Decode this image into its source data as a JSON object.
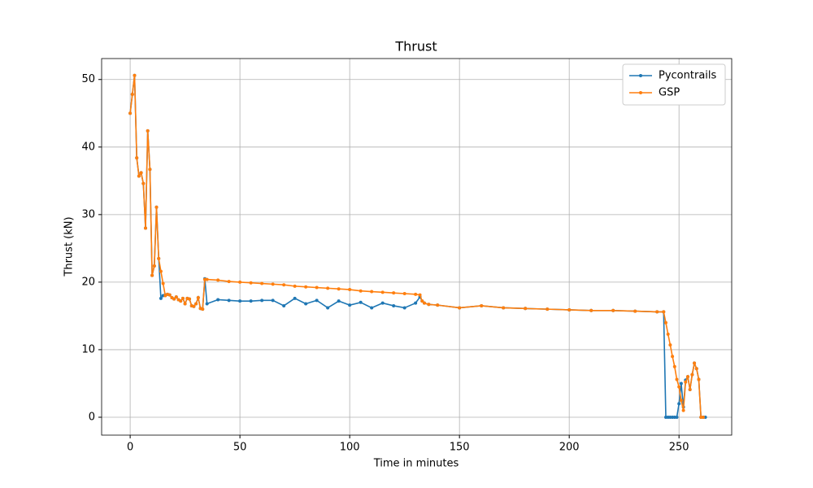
{
  "chart_data": {
    "type": "line",
    "title": "Thrust",
    "x_label": "Time in minutes",
    "y_label": "Thrust (kN)",
    "x": [
      0,
      1,
      2,
      3,
      4,
      5,
      6,
      7,
      8,
      9,
      10,
      11,
      12,
      13,
      14,
      15,
      16,
      17,
      18,
      19,
      20,
      21,
      22,
      23,
      24,
      25,
      26,
      27,
      28,
      29,
      30,
      31,
      32,
      33,
      34,
      35,
      40,
      45,
      50,
      55,
      60,
      65,
      70,
      75,
      80,
      85,
      90,
      95,
      100,
      105,
      110,
      115,
      120,
      125,
      130,
      132,
      133,
      134,
      136,
      140,
      150,
      160,
      170,
      180,
      190,
      200,
      210,
      220,
      230,
      240,
      243,
      244,
      245,
      246,
      247,
      248,
      249,
      250,
      251,
      252,
      253,
      254,
      255,
      256,
      257,
      258,
      259,
      260,
      261,
      262
    ],
    "series": [
      {
        "name": "Pycontrails",
        "color": "#1f77b4",
        "values": [
          45,
          47.8,
          50.6,
          38.4,
          35.7,
          36.2,
          34.6,
          28,
          42.4,
          36.7,
          21,
          22.4,
          31.1,
          23.5,
          17.6,
          18,
          18.1,
          18.2,
          18.1,
          17.7,
          17.5,
          17.8,
          17.4,
          17.2,
          17.6,
          16.8,
          17.6,
          17.5,
          16.5,
          16.4,
          16.8,
          17.7,
          16.1,
          16,
          20.5,
          16.8,
          17.4,
          17.3,
          17.2,
          17.2,
          17.3,
          17.3,
          16.5,
          17.6,
          16.8,
          17.3,
          16.2,
          17.2,
          16.6,
          17,
          16.2,
          16.9,
          16.5,
          16.2,
          16.9,
          17.8,
          17.2,
          16.9,
          16.7,
          16.6,
          16.2,
          16.5,
          16.2,
          16.1,
          16,
          15.9,
          15.8,
          15.8,
          15.7,
          15.6,
          15.6,
          0,
          0,
          0,
          0,
          0,
          0,
          2,
          5,
          1.5,
          5.5,
          6,
          4.1,
          6.3,
          8,
          7.2,
          5.6,
          0,
          0,
          0
        ]
      },
      {
        "name": "GSP",
        "color": "#ff7f0e",
        "values": [
          45,
          47.8,
          50.6,
          38.4,
          35.7,
          36.2,
          34.6,
          28,
          42.4,
          36.7,
          21,
          22.4,
          31.1,
          23.5,
          21.6,
          19.8,
          18,
          18.2,
          18.1,
          17.7,
          17.5,
          17.8,
          17.4,
          17.2,
          17.6,
          16.8,
          17.6,
          17.5,
          16.5,
          16.4,
          16.8,
          17.7,
          16.1,
          16,
          20.4,
          20.4,
          20.3,
          20.1,
          20,
          19.9,
          19.8,
          19.7,
          19.6,
          19.4,
          19.3,
          19.2,
          19.1,
          19,
          18.9,
          18.7,
          18.6,
          18.5,
          18.4,
          18.3,
          18.2,
          18.1,
          17.2,
          16.9,
          16.7,
          16.6,
          16.2,
          16.5,
          16.2,
          16.1,
          16,
          15.9,
          15.8,
          15.8,
          15.7,
          15.6,
          15.6,
          14,
          12.3,
          10.7,
          9,
          7.5,
          5.6,
          4.5,
          2.5,
          1,
          5.2,
          6,
          4.1,
          6.3,
          8,
          7.2,
          5.6,
          0,
          0,
          null
        ]
      }
    ],
    "xlim": [
      -13,
      274
    ],
    "ylim": [
      -2.65,
      53.1
    ],
    "xticks": [
      0,
      50,
      100,
      150,
      200,
      250
    ],
    "yticks": [
      0,
      10,
      20,
      30,
      40,
      50
    ],
    "grid": true,
    "legend": "upper right"
  }
}
